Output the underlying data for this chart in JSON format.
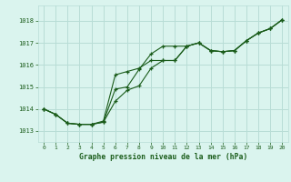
{
  "title": "Graphe pression niveau de la mer (hPa)",
  "x_ticks": [
    0,
    1,
    2,
    3,
    4,
    5,
    6,
    7,
    8,
    9,
    10,
    11,
    12,
    13,
    14,
    15,
    16,
    17,
    18,
    19,
    20
  ],
  "xlim": [
    -0.5,
    20.5
  ],
  "ylim": [
    1012.5,
    1018.7
  ],
  "yticks": [
    1013,
    1014,
    1015,
    1016,
    1017,
    1018
  ],
  "background_color": "#daf4ee",
  "grid_color": "#b8ddd6",
  "line_color": "#1a5c1a",
  "line1_x": [
    0,
    1,
    2,
    3,
    4,
    5,
    6,
    7,
    8,
    9,
    10,
    11,
    12,
    13,
    14,
    15,
    16,
    17,
    18,
    19,
    20
  ],
  "line1_y": [
    1014.0,
    1013.75,
    1013.35,
    1013.3,
    1013.3,
    1013.4,
    1014.35,
    1014.85,
    1015.05,
    1015.85,
    1016.2,
    1016.2,
    1016.85,
    1017.0,
    1016.65,
    1016.6,
    1016.65,
    1017.1,
    1017.45,
    1017.65,
    1018.05
  ],
  "line2_x": [
    0,
    1,
    2,
    3,
    4,
    5,
    6,
    7,
    8,
    9,
    10,
    11,
    12,
    13,
    14,
    15,
    16,
    17,
    18,
    19,
    20
  ],
  "line2_y": [
    1014.0,
    1013.75,
    1013.35,
    1013.3,
    1013.3,
    1013.45,
    1015.55,
    1015.7,
    1015.85,
    1016.2,
    1016.2,
    1016.2,
    1016.85,
    1017.0,
    1016.65,
    1016.6,
    1016.65,
    1017.1,
    1017.45,
    1017.65,
    1018.05
  ],
  "line3_x": [
    0,
    1,
    2,
    3,
    4,
    5,
    6,
    7,
    8,
    9,
    10,
    11,
    12,
    13,
    14,
    15,
    16,
    17,
    18,
    19,
    20
  ],
  "line3_y": [
    1014.0,
    1013.75,
    1013.35,
    1013.3,
    1013.3,
    1013.4,
    1014.9,
    1015.0,
    1015.8,
    1016.5,
    1016.85,
    1016.85,
    1016.85,
    1017.0,
    1016.65,
    1016.6,
    1016.65,
    1017.1,
    1017.45,
    1017.65,
    1018.05
  ]
}
